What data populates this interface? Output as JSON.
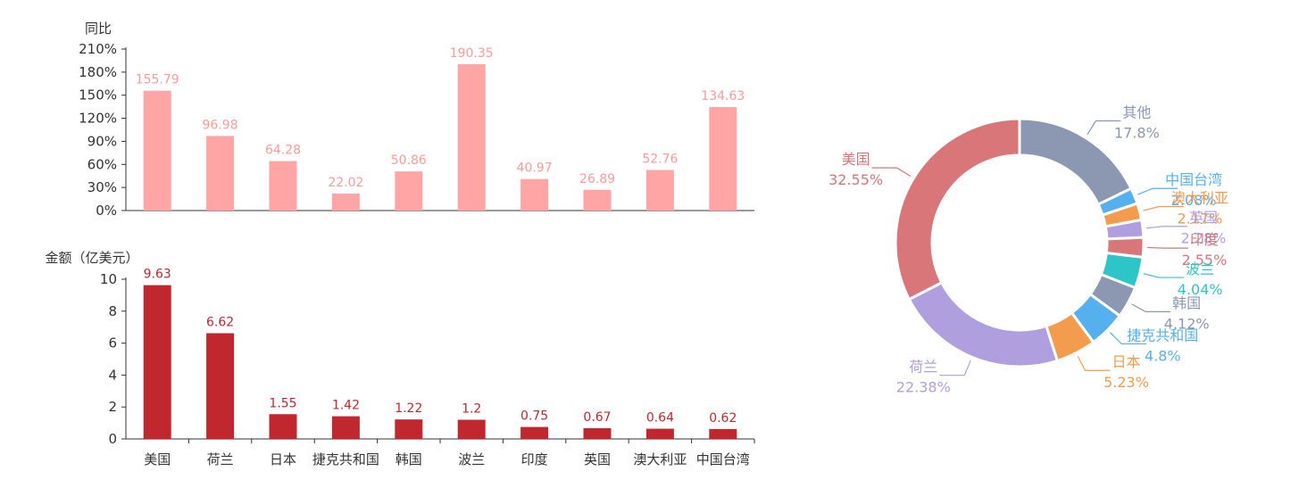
{
  "chart_data": [
    {
      "type": "bar",
      "ylabel": "同比",
      "categories": [
        "美国",
        "荷兰",
        "日本",
        "捷克共和国",
        "韩国",
        "波兰",
        "印度",
        "英国",
        "澳大利亚",
        "中国台湾"
      ],
      "values": [
        155.79,
        96.98,
        64.28,
        22.02,
        50.86,
        190.35,
        40.97,
        26.89,
        52.76,
        134.63
      ],
      "value_labels": [
        "155.79",
        "96.98",
        "64.28",
        "22.02",
        "50.86",
        "190.35",
        "40.97",
        "26.89",
        "52.76",
        "134.63"
      ],
      "ylim": [
        0,
        210
      ],
      "yticks": [
        "0%",
        "30%",
        "60%",
        "90%",
        "120%",
        "150%",
        "180%",
        "210%"
      ],
      "color": "#ffa5a5",
      "label_color": "#ff9a9a"
    },
    {
      "type": "bar",
      "ylabel": "金额（亿美元）",
      "categories": [
        "美国",
        "荷兰",
        "日本",
        "捷克共和国",
        "韩国",
        "波兰",
        "印度",
        "英国",
        "澳大利亚",
        "中国台湾"
      ],
      "values": [
        9.63,
        6.62,
        1.55,
        1.42,
        1.22,
        1.2,
        0.75,
        0.67,
        0.64,
        0.62
      ],
      "value_labels": [
        "9.63",
        "6.62",
        "1.55",
        "1.42",
        "1.22",
        "1.2",
        "0.75",
        "0.67",
        "0.64",
        "0.62"
      ],
      "ylim": [
        0,
        10
      ],
      "yticks": [
        "0",
        "2",
        "4",
        "6",
        "8",
        "10"
      ],
      "color": "#c0272f",
      "label_color": "#c0272f"
    },
    {
      "type": "pie",
      "donut": true,
      "slices": [
        {
          "name": "其他",
          "value": 17.8,
          "label": "17.8%",
          "color": "#8c97b1"
        },
        {
          "name": "中国台湾",
          "value": 2.08,
          "label": "2.08%",
          "color": "#56b0ee"
        },
        {
          "name": "澳大利亚",
          "value": 2.17,
          "label": "2.17%",
          "color": "#f39c4d"
        },
        {
          "name": "英国",
          "value": 2.28,
          "label": "2.28%",
          "color": "#b09fdf"
        },
        {
          "name": "印度",
          "value": 2.55,
          "label": "2.55%",
          "color": "#d8767a"
        },
        {
          "name": "波兰",
          "value": 4.04,
          "label": "4.04%",
          "color": "#2ec5c9"
        },
        {
          "name": "韩国",
          "value": 4.12,
          "label": "4.12%",
          "color": "#8c97b1"
        },
        {
          "name": "捷克共和国",
          "value": 4.8,
          "label": "4.8%",
          "color": "#56b0ee"
        },
        {
          "name": "日本",
          "value": 5.23,
          "label": "5.23%",
          "color": "#f39c4d"
        },
        {
          "name": "荷兰",
          "value": 22.38,
          "label": "22.38%",
          "color": "#b09fdf"
        },
        {
          "name": "美国",
          "value": 32.55,
          "label": "32.55%",
          "color": "#d8767a"
        }
      ]
    }
  ]
}
